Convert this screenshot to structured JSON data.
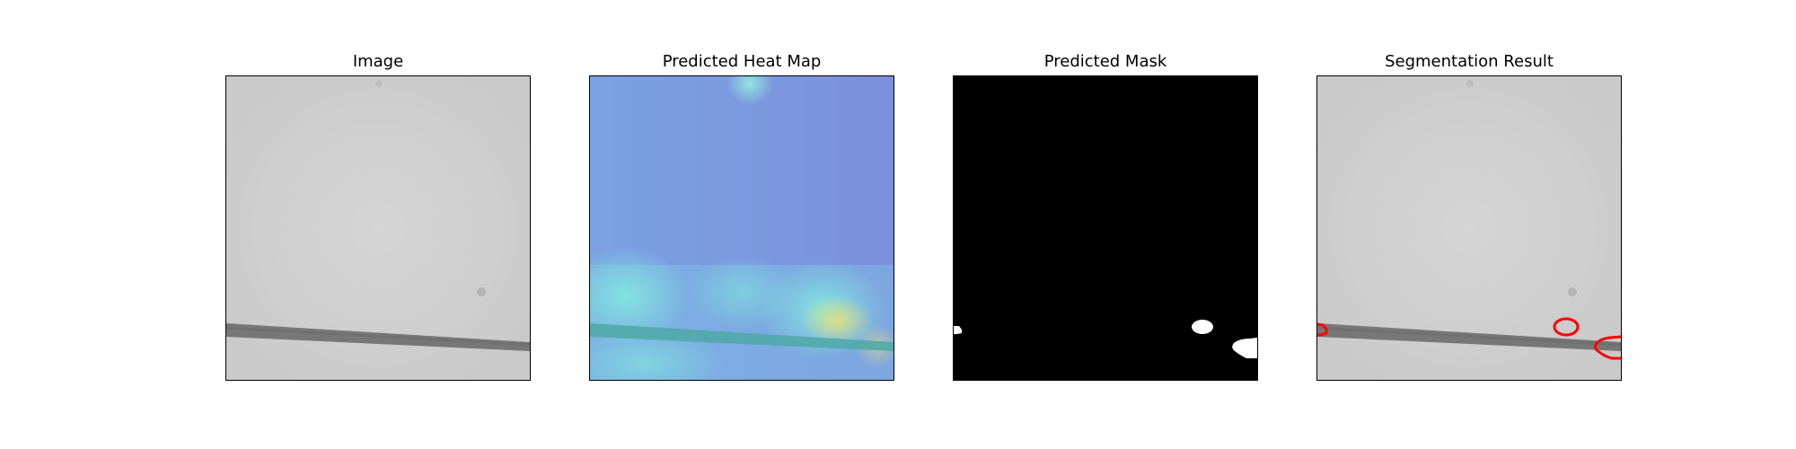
{
  "figure": {
    "panels": [
      {
        "title": "Image"
      },
      {
        "title": "Predicted Heat Map"
      },
      {
        "title": "Predicted Mask"
      },
      {
        "title": "Segmentation Result"
      }
    ]
  },
  "colors": {
    "background_gray": "#cfcfcf",
    "line_gray": "#7d7d7d",
    "heat_blue": "#7c9ae0",
    "heat_cyan": "#7fe3df",
    "heat_yellow": "#e8e27a",
    "mask_black": "#000000",
    "mask_white": "#ffffff",
    "contour_red": "#ff0000"
  }
}
